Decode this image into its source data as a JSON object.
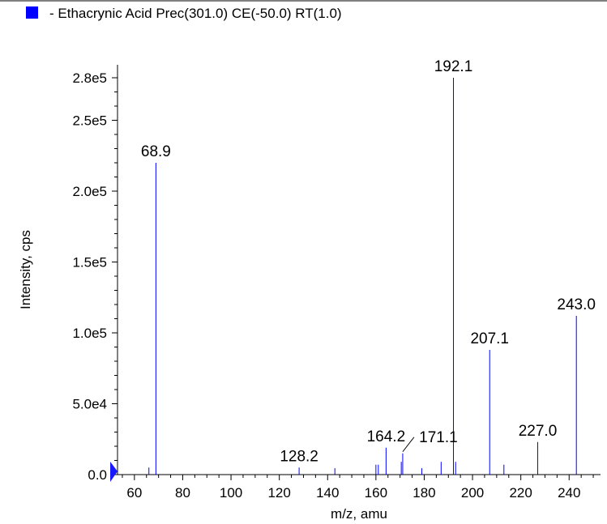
{
  "chart_data": {
    "type": "bar",
    "title": "",
    "legend": {
      "label": "- Ethacrynic Acid Prec(301.0) CE(-50.0) RT(1.0)",
      "color": "#0000ff",
      "position": "top-left"
    },
    "xlabel": "m/z, amu",
    "ylabel": "Intensity, cps",
    "xlim": [
      53,
      253
    ],
    "ylim": [
      0,
      288000
    ],
    "x_ticks": [
      60,
      80,
      100,
      120,
      140,
      160,
      180,
      200,
      220,
      240
    ],
    "y_ticks": [
      {
        "value": 0,
        "label": "0.0"
      },
      {
        "value": 50000,
        "label": "5.0e4"
      },
      {
        "value": 100000,
        "label": "1.0e5"
      },
      {
        "value": 150000,
        "label": "1.5e5"
      },
      {
        "value": 200000,
        "label": "2.0e5"
      },
      {
        "value": 250000,
        "label": "2.5e5"
      },
      {
        "value": 280000,
        "label": "2.8e5"
      }
    ],
    "series": [
      {
        "color": "#0000ff",
        "peaks": [
          {
            "x": 66.0,
            "y": 5000
          },
          {
            "x": 68.9,
            "y": 220000,
            "label": "68.9"
          },
          {
            "x": 128.2,
            "y": 5000,
            "label": "128.2"
          },
          {
            "x": 143.0,
            "y": 4500
          },
          {
            "x": 160.0,
            "y": 7000
          },
          {
            "x": 161.0,
            "y": 7000
          },
          {
            "x": 164.2,
            "y": 19000,
            "label": "164.2"
          },
          {
            "x": 170.5,
            "y": 9000
          },
          {
            "x": 171.1,
            "y": 15000,
            "label": "171.1"
          },
          {
            "x": 179.0,
            "y": 4500
          },
          {
            "x": 187.0,
            "y": 9000
          },
          {
            "x": 192.1,
            "y": 280000,
            "label": "192.1"
          },
          {
            "x": 193.0,
            "y": 9000
          },
          {
            "x": 207.1,
            "y": 88000,
            "label": "207.1"
          },
          {
            "x": 213.0,
            "y": 7000
          },
          {
            "x": 227.0,
            "y": 23000,
            "label": "227.0"
          },
          {
            "x": 243.0,
            "y": 112000,
            "label": "243.0"
          }
        ]
      }
    ],
    "grid": false,
    "baseline_marker_color": "#1a1aff"
  }
}
